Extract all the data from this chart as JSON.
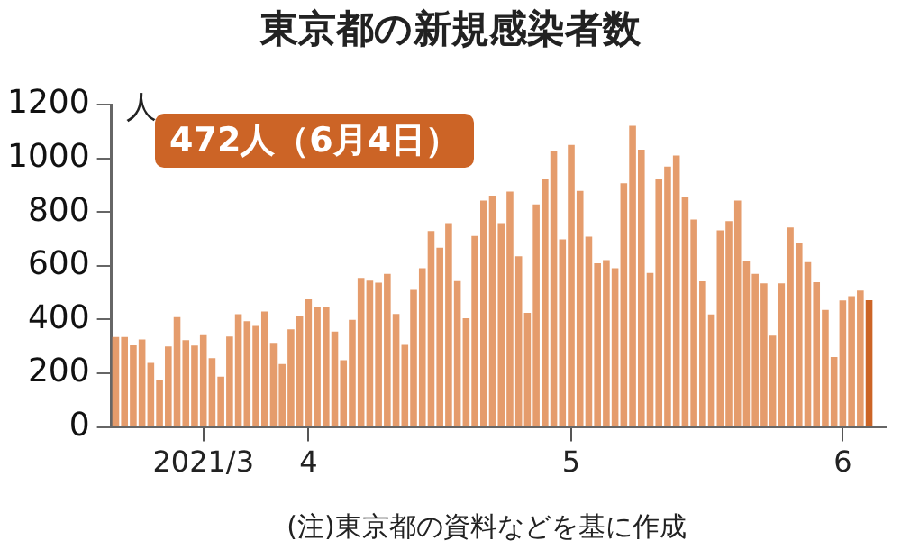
{
  "chart_data": {
    "type": "bar",
    "title": "東京都の新規感染者数",
    "ylabel": "人",
    "annotations": [
      "472人（6月4日）",
      "(注)東京都の資料などを基に作成"
    ],
    "x": [
      "2021-03-10",
      "2021-03-11",
      "2021-03-12",
      "2021-03-13",
      "2021-03-14",
      "2021-03-15",
      "2021-03-16",
      "2021-03-17",
      "2021-03-18",
      "2021-03-19",
      "2021-03-20",
      "2021-03-21",
      "2021-03-22",
      "2021-03-23",
      "2021-03-24",
      "2021-03-25",
      "2021-03-26",
      "2021-03-27",
      "2021-03-28",
      "2021-03-29",
      "2021-03-30",
      "2021-03-31",
      "2021-04-01",
      "2021-04-02",
      "2021-04-03",
      "2021-04-04",
      "2021-04-05",
      "2021-04-06",
      "2021-04-07",
      "2021-04-08",
      "2021-04-09",
      "2021-04-10",
      "2021-04-11",
      "2021-04-12",
      "2021-04-13",
      "2021-04-14",
      "2021-04-15",
      "2021-04-16",
      "2021-04-17",
      "2021-04-18",
      "2021-04-19",
      "2021-04-20",
      "2021-04-21",
      "2021-04-22",
      "2021-04-23",
      "2021-04-24",
      "2021-04-25",
      "2021-04-26",
      "2021-04-27",
      "2021-04-28",
      "2021-04-29",
      "2021-04-30",
      "2021-05-01",
      "2021-05-02",
      "2021-05-03",
      "2021-05-04",
      "2021-05-05",
      "2021-05-06",
      "2021-05-07",
      "2021-05-08",
      "2021-05-09",
      "2021-05-10",
      "2021-05-11",
      "2021-05-12",
      "2021-05-13",
      "2021-05-14",
      "2021-05-15",
      "2021-05-16",
      "2021-05-17",
      "2021-05-18",
      "2021-05-19",
      "2021-05-20",
      "2021-05-21",
      "2021-05-22",
      "2021-05-23",
      "2021-05-24",
      "2021-05-25",
      "2021-05-26",
      "2021-05-27",
      "2021-05-28",
      "2021-05-29",
      "2021-05-30",
      "2021-05-31",
      "2021-06-01",
      "2021-06-02",
      "2021-06-03",
      "2021-06-04"
    ],
    "values": [
      335,
      335,
      304,
      326,
      239,
      175,
      300,
      409,
      323,
      303,
      342,
      256,
      187,
      337,
      420,
      394,
      376,
      430,
      313,
      234,
      364,
      414,
      475,
      446,
      446,
      355,
      249,
      399,
      555,
      545,
      537,
      570,
      421,
      306,
      510,
      591,
      729,
      667,
      759,
      543,
      405,
      711,
      843,
      861,
      759,
      876,
      635,
      425,
      828,
      925,
      1027,
      698,
      1050,
      879,
      708,
      609,
      621,
      591,
      907,
      1121,
      1032,
      573,
      925,
      969,
      1010,
      854,
      772,
      542,
      419,
      732,
      766,
      843,
      618,
      570,
      535,
      340,
      535,
      743,
      684,
      614,
      539,
      436,
      260,
      471,
      487,
      508,
      472
    ],
    "colors": [
      "#e59c6c",
      "#e59c6c",
      "#e59c6c",
      "#e59c6c",
      "#e59c6c",
      "#e59c6c",
      "#e59c6c",
      "#e59c6c",
      "#e59c6c",
      "#e59c6c",
      "#e59c6c",
      "#e59c6c",
      "#e59c6c",
      "#e59c6c",
      "#e59c6c",
      "#e59c6c",
      "#e59c6c",
      "#e59c6c",
      "#e59c6c",
      "#e59c6c",
      "#e59c6c",
      "#e59c6c",
      "#e59c6c",
      "#e59c6c",
      "#e59c6c",
      "#e59c6c",
      "#e59c6c",
      "#e59c6c",
      "#e59c6c",
      "#e59c6c",
      "#e59c6c",
      "#e59c6c",
      "#e59c6c",
      "#e59c6c",
      "#e59c6c",
      "#e59c6c",
      "#e59c6c",
      "#e59c6c",
      "#e59c6c",
      "#e59c6c",
      "#e59c6c",
      "#e59c6c",
      "#e59c6c",
      "#e59c6c",
      "#e59c6c",
      "#e59c6c",
      "#e59c6c",
      "#e59c6c",
      "#e59c6c",
      "#e59c6c",
      "#e59c6c",
      "#e59c6c",
      "#e59c6c",
      "#e59c6c",
      "#e59c6c",
      "#e59c6c",
      "#e59c6c",
      "#e59c6c",
      "#e59c6c",
      "#e59c6c",
      "#e59c6c",
      "#e59c6c",
      "#e59c6c",
      "#e59c6c",
      "#e59c6c",
      "#e59c6c",
      "#e59c6c",
      "#e59c6c",
      "#e59c6c",
      "#e59c6c",
      "#e59c6c",
      "#e59c6c",
      "#e59c6c",
      "#e59c6c",
      "#e59c6c",
      "#e59c6c",
      "#e59c6c",
      "#e59c6c",
      "#e59c6c",
      "#e59c6c",
      "#e59c6c",
      "#e59c6c",
      "#e59c6c",
      "#e59c6c",
      "#e59c6c",
      "#e59c6c",
      "#cc6426"
    ],
    "xlim": [
      "2021-03-09T12:00",
      "2021-06-06"
    ],
    "xticks": [
      {
        "value": "2021-03-20",
        "label": "2021/3"
      },
      {
        "value": "2021-04-01",
        "label": "4"
      },
      {
        "value": "2021-05-01",
        "label": "5"
      },
      {
        "value": "2021-06-01",
        "label": "6"
      }
    ],
    "ylim": [
      0,
      1200
    ],
    "yticks": [
      0,
      200,
      400,
      600,
      800,
      1000,
      1200
    ],
    "grid": false,
    "legend": false
  }
}
